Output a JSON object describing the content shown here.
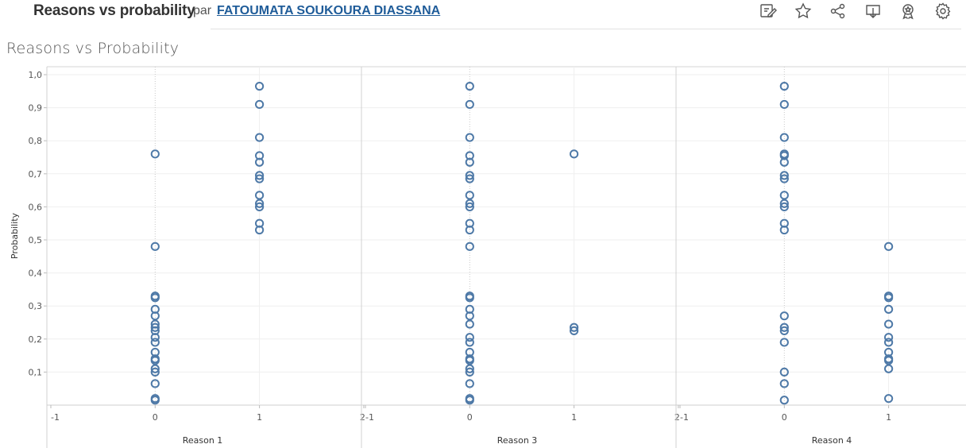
{
  "header": {
    "title": "Reasons vs probability",
    "by_label": "par",
    "author": "FATOUMATA SOUKOURA DIASSANA",
    "toolbar_icons": [
      "edit-icon",
      "star-icon",
      "share-icon",
      "download-icon",
      "badge-icon",
      "settings-icon"
    ]
  },
  "sheet_title": "Reasons vs Probability",
  "colors": {
    "mark": "#4e79a7",
    "text": "#333333",
    "grid": "#efefef"
  },
  "chart_data": {
    "type": "scatter",
    "title": "Reasons vs Probability",
    "ylabel": "Probability",
    "ylim": [
      0,
      1.0
    ],
    "yticks": [
      "0,1",
      "0,2",
      "0,3",
      "0,4",
      "0,5",
      "0,6",
      "0,7",
      "0,8",
      "0,9",
      "1,0"
    ],
    "xlim": [
      -1,
      2
    ],
    "xticks": [
      "-1",
      "0",
      "1",
      "2"
    ],
    "marker": "open-circle",
    "panels": [
      {
        "xlabel": "Reason 1",
        "points": [
          {
            "x": 0,
            "y": 0.76
          },
          {
            "x": 0,
            "y": 0.48
          },
          {
            "x": 0,
            "y": 0.33
          },
          {
            "x": 0,
            "y": 0.325
          },
          {
            "x": 0,
            "y": 0.29
          },
          {
            "x": 0,
            "y": 0.27
          },
          {
            "x": 0,
            "y": 0.245
          },
          {
            "x": 0,
            "y": 0.235
          },
          {
            "x": 0,
            "y": 0.225
          },
          {
            "x": 0,
            "y": 0.205
          },
          {
            "x": 0,
            "y": 0.19
          },
          {
            "x": 0,
            "y": 0.16
          },
          {
            "x": 0,
            "y": 0.14
          },
          {
            "x": 0,
            "y": 0.135
          },
          {
            "x": 0,
            "y": 0.11
          },
          {
            "x": 0,
            "y": 0.1
          },
          {
            "x": 0,
            "y": 0.065
          },
          {
            "x": 0,
            "y": 0.02
          },
          {
            "x": 0,
            "y": 0.015
          },
          {
            "x": 1,
            "y": 0.965
          },
          {
            "x": 1,
            "y": 0.91
          },
          {
            "x": 1,
            "y": 0.81
          },
          {
            "x": 1,
            "y": 0.755
          },
          {
            "x": 1,
            "y": 0.735
          },
          {
            "x": 1,
            "y": 0.695
          },
          {
            "x": 1,
            "y": 0.685
          },
          {
            "x": 1,
            "y": 0.635
          },
          {
            "x": 1,
            "y": 0.61
          },
          {
            "x": 1,
            "y": 0.6
          },
          {
            "x": 1,
            "y": 0.55
          },
          {
            "x": 1,
            "y": 0.53
          }
        ]
      },
      {
        "xlabel": "Reason 3",
        "points": [
          {
            "x": 0,
            "y": 0.965
          },
          {
            "x": 0,
            "y": 0.91
          },
          {
            "x": 0,
            "y": 0.81
          },
          {
            "x": 0,
            "y": 0.755
          },
          {
            "x": 0,
            "y": 0.735
          },
          {
            "x": 0,
            "y": 0.695
          },
          {
            "x": 0,
            "y": 0.685
          },
          {
            "x": 0,
            "y": 0.635
          },
          {
            "x": 0,
            "y": 0.61
          },
          {
            "x": 0,
            "y": 0.6
          },
          {
            "x": 0,
            "y": 0.55
          },
          {
            "x": 0,
            "y": 0.53
          },
          {
            "x": 0,
            "y": 0.48
          },
          {
            "x": 0,
            "y": 0.33
          },
          {
            "x": 0,
            "y": 0.325
          },
          {
            "x": 0,
            "y": 0.29
          },
          {
            "x": 0,
            "y": 0.27
          },
          {
            "x": 0,
            "y": 0.245
          },
          {
            "x": 0,
            "y": 0.205
          },
          {
            "x": 0,
            "y": 0.19
          },
          {
            "x": 0,
            "y": 0.16
          },
          {
            "x": 0,
            "y": 0.14
          },
          {
            "x": 0,
            "y": 0.135
          },
          {
            "x": 0,
            "y": 0.11
          },
          {
            "x": 0,
            "y": 0.1
          },
          {
            "x": 0,
            "y": 0.065
          },
          {
            "x": 0,
            "y": 0.02
          },
          {
            "x": 0,
            "y": 0.015
          },
          {
            "x": 1,
            "y": 0.76
          },
          {
            "x": 1,
            "y": 0.235
          },
          {
            "x": 1,
            "y": 0.225
          }
        ]
      },
      {
        "xlabel": "Reason 4",
        "points": [
          {
            "x": 0,
            "y": 0.965
          },
          {
            "x": 0,
            "y": 0.91
          },
          {
            "x": 0,
            "y": 0.81
          },
          {
            "x": 0,
            "y": 0.76
          },
          {
            "x": 0,
            "y": 0.755
          },
          {
            "x": 0,
            "y": 0.735
          },
          {
            "x": 0,
            "y": 0.695
          },
          {
            "x": 0,
            "y": 0.685
          },
          {
            "x": 0,
            "y": 0.635
          },
          {
            "x": 0,
            "y": 0.61
          },
          {
            "x": 0,
            "y": 0.6
          },
          {
            "x": 0,
            "y": 0.55
          },
          {
            "x": 0,
            "y": 0.53
          },
          {
            "x": 0,
            "y": 0.27
          },
          {
            "x": 0,
            "y": 0.235
          },
          {
            "x": 0,
            "y": 0.225
          },
          {
            "x": 0,
            "y": 0.19
          },
          {
            "x": 0,
            "y": 0.1
          },
          {
            "x": 0,
            "y": 0.065
          },
          {
            "x": 0,
            "y": 0.015
          },
          {
            "x": 1,
            "y": 0.48
          },
          {
            "x": 1,
            "y": 0.33
          },
          {
            "x": 1,
            "y": 0.325
          },
          {
            "x": 1,
            "y": 0.29
          },
          {
            "x": 1,
            "y": 0.245
          },
          {
            "x": 1,
            "y": 0.205
          },
          {
            "x": 1,
            "y": 0.19
          },
          {
            "x": 1,
            "y": 0.16
          },
          {
            "x": 1,
            "y": 0.14
          },
          {
            "x": 1,
            "y": 0.135
          },
          {
            "x": 1,
            "y": 0.11
          },
          {
            "x": 1,
            "y": 0.02
          }
        ]
      }
    ]
  }
}
